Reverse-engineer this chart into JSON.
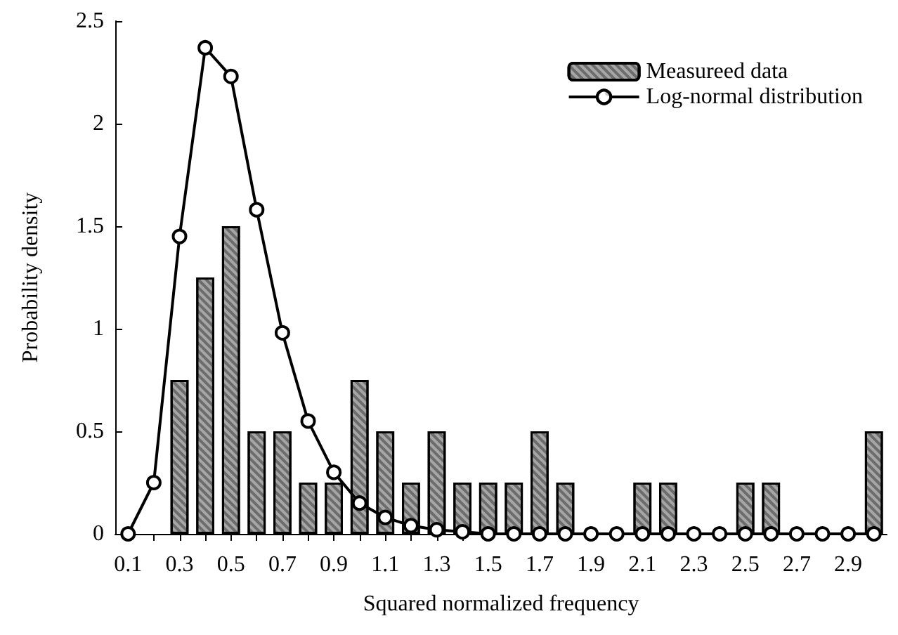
{
  "chart_data": {
    "type": "bar",
    "xlabel": "Squared normalized frequency",
    "ylabel": "Probability density",
    "categories": [
      "0.1",
      null,
      "0.3",
      null,
      "0.5",
      null,
      "0.7",
      null,
      "0.9",
      null,
      "1.1",
      null,
      "1.3",
      null,
      "1.5",
      null,
      "1.7",
      null,
      "1.9",
      null,
      "2.1",
      null,
      "2.3",
      null,
      "2.5",
      null,
      "2.7",
      null,
      "2.9",
      null
    ],
    "series": [
      {
        "name": "Measureed data",
        "color": "#a6a6a6",
        "values": [
          0,
          0,
          0.75,
          1.25,
          1.5,
          0.5,
          0.5,
          0.25,
          0.25,
          0.75,
          0.5,
          0.25,
          0.5,
          0.25,
          0.25,
          0.25,
          0.5,
          0.25,
          0,
          0,
          0.25,
          0.25,
          0,
          0,
          0.25,
          0.25,
          0,
          0,
          0,
          0.5
        ]
      },
      {
        "name": "Log-normal distribution",
        "type": "line",
        "color": "#000000",
        "marker": "circle",
        "line_style": "solid",
        "values": [
          0,
          0.25,
          1.45,
          2.37,
          2.23,
          1.58,
          0.98,
          0.55,
          0.3,
          0.15,
          0.08,
          0.04,
          0.02,
          0.01,
          0,
          0,
          0,
          0,
          0,
          0,
          0,
          0,
          0,
          0,
          0,
          0,
          0,
          0,
          0,
          0
        ]
      }
    ],
    "ylim": [
      0,
      2.5
    ],
    "yticks": [
      0,
      0.5,
      1,
      1.5,
      2,
      2.5
    ],
    "grid": false,
    "legend": "top right"
  }
}
